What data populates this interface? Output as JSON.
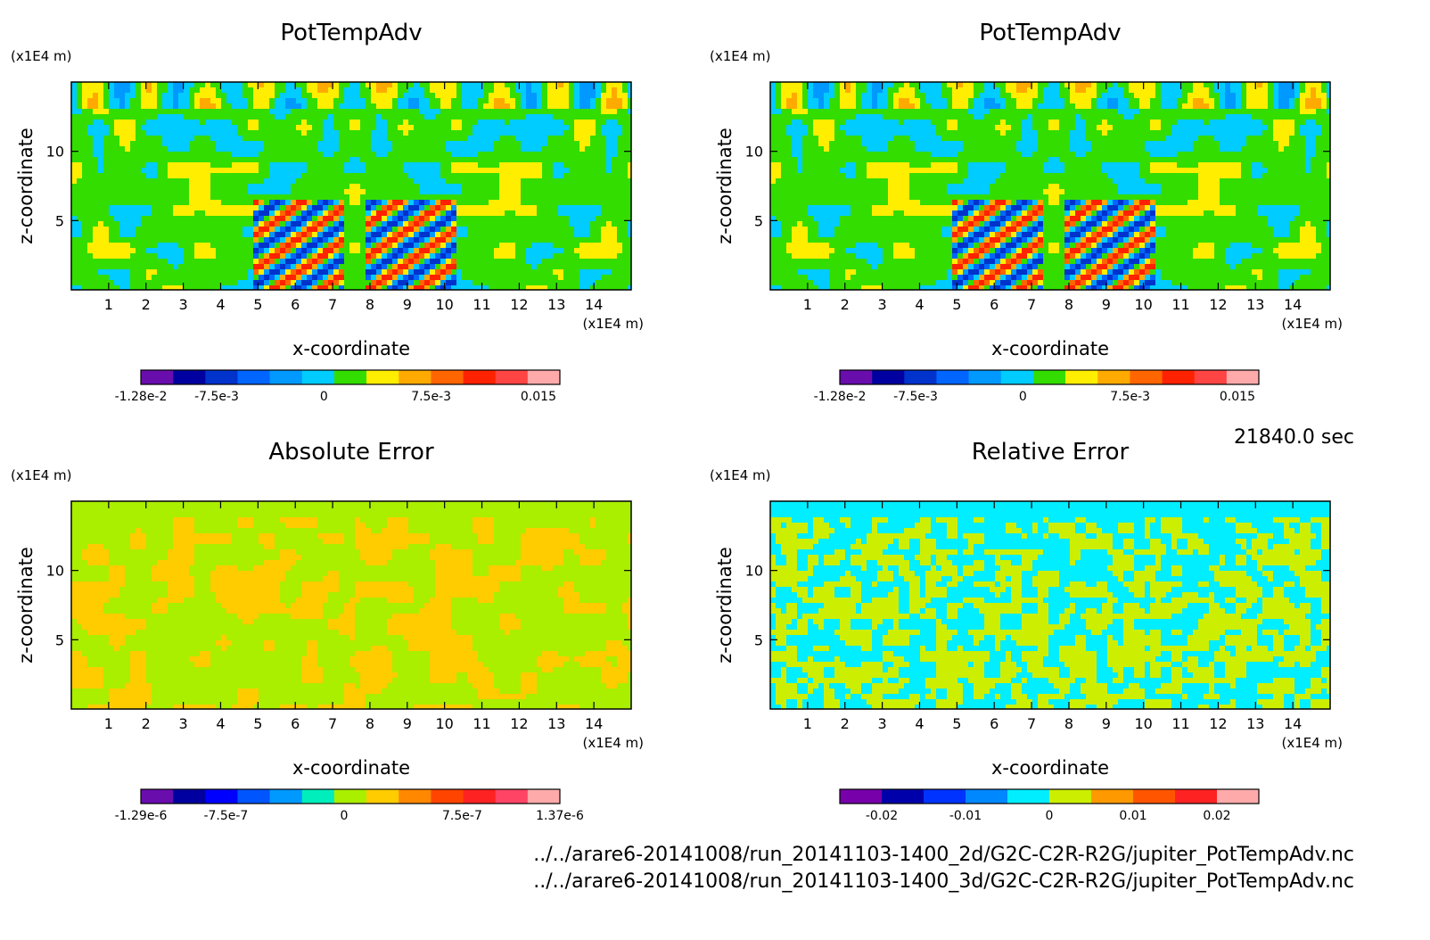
{
  "timestamp": "21840.0 sec",
  "file_paths": [
    "../../arare6-20141008/run_20141103-1400_2d/G2C-C2R-R2G/jupiter_PotTempAdv.nc",
    "../../arare6-20141008/run_20141103-1400_3d/G2C-C2R-R2G/jupiter_PotTempAdv.nc"
  ],
  "chart_data": [
    {
      "type": "heatmap",
      "title": "PotTempAdv",
      "xlabel": "x-coordinate",
      "ylabel": "z-coordinate",
      "x_unit": "(x1E4 m)",
      "y_unit": "(x1E4 m)",
      "xlim": [
        0,
        15
      ],
      "ylim": [
        0,
        15
      ],
      "xticks": [
        1,
        2,
        3,
        4,
        5,
        6,
        7,
        8,
        9,
        10,
        11,
        12,
        13,
        14
      ],
      "yticks": [
        5,
        10
      ],
      "colorbar": {
        "colors": [
          "#6a0dad",
          "#0000a0",
          "#0033cc",
          "#0066ff",
          "#0099ff",
          "#00ccff",
          "#33dd00",
          "#ffee00",
          "#ffaa00",
          "#ff6600",
          "#ff2200",
          "#ff4444",
          "#ffaaaa"
        ],
        "labels": [
          "-1.28e-2",
          "-7.5e-3",
          "0",
          "7.5e-3",
          "0.015"
        ],
        "label_values": [
          -0.0128,
          -0.0075,
          0,
          0.0075,
          0.015
        ],
        "range": [
          -0.0128,
          0.0165
        ]
      }
    },
    {
      "type": "heatmap",
      "title": "PotTempAdv",
      "xlabel": "x-coordinate",
      "ylabel": "z-coordinate",
      "x_unit": "(x1E4 m)",
      "y_unit": "(x1E4 m)",
      "xlim": [
        0,
        15
      ],
      "ylim": [
        0,
        15
      ],
      "xticks": [
        1,
        2,
        3,
        4,
        5,
        6,
        7,
        8,
        9,
        10,
        11,
        12,
        13,
        14
      ],
      "yticks": [
        5,
        10
      ],
      "colorbar": {
        "colors": [
          "#6a0dad",
          "#0000a0",
          "#0033cc",
          "#0066ff",
          "#0099ff",
          "#00ccff",
          "#33dd00",
          "#ffee00",
          "#ffaa00",
          "#ff6600",
          "#ff2200",
          "#ff4444",
          "#ffaaaa"
        ],
        "labels": [
          "-1.28e-2",
          "-7.5e-3",
          "0",
          "7.5e-3",
          "0.015"
        ],
        "label_values": [
          -0.0128,
          -0.0075,
          0,
          0.0075,
          0.015
        ],
        "range": [
          -0.0128,
          0.0165
        ]
      }
    },
    {
      "type": "heatmap",
      "title": "Absolute Error",
      "xlabel": "x-coordinate",
      "ylabel": "z-coordinate",
      "x_unit": "(x1E4 m)",
      "y_unit": "(x1E4 m)",
      "xlim": [
        0,
        15
      ],
      "ylim": [
        0,
        15
      ],
      "xticks": [
        1,
        2,
        3,
        4,
        5,
        6,
        7,
        8,
        9,
        10,
        11,
        12,
        13,
        14
      ],
      "yticks": [
        5,
        10
      ],
      "colorbar": {
        "colors": [
          "#6a0dad",
          "#0000a0",
          "#0000ff",
          "#0055ff",
          "#0099ff",
          "#00eebb",
          "#aaee00",
          "#ffcc00",
          "#ff8800",
          "#ff4400",
          "#ff2222",
          "#ff4466",
          "#ffaaaa"
        ],
        "labels": [
          "-1.29e-6",
          "-7.5e-7",
          "0",
          "7.5e-7",
          "1.37e-6"
        ],
        "label_values": [
          -1.29e-06,
          -7.5e-07,
          0,
          7.5e-07,
          1.37e-06
        ],
        "range": [
          -1.29e-06,
          1.37e-06
        ]
      }
    },
    {
      "type": "heatmap",
      "title": "Relative Error",
      "xlabel": "x-coordinate",
      "ylabel": "z-coordinate",
      "x_unit": "(x1E4 m)",
      "y_unit": "(x1E4 m)",
      "xlim": [
        0,
        15
      ],
      "ylim": [
        0,
        15
      ],
      "xticks": [
        1,
        2,
        3,
        4,
        5,
        6,
        7,
        8,
        9,
        10,
        11,
        12,
        13,
        14
      ],
      "yticks": [
        5,
        10
      ],
      "colorbar": {
        "colors": [
          "#7700aa",
          "#0000aa",
          "#0033ff",
          "#0088ff",
          "#00eeff",
          "#ccee00",
          "#ff9900",
          "#ff5500",
          "#ff2222",
          "#ffaaaa"
        ],
        "labels": [
          "-0.02",
          "-0.01",
          "0",
          "0.01",
          "0.02"
        ],
        "label_values": [
          -0.02,
          -0.01,
          0,
          0.01,
          0.02
        ],
        "range": [
          -0.025,
          0.025
        ]
      }
    }
  ]
}
